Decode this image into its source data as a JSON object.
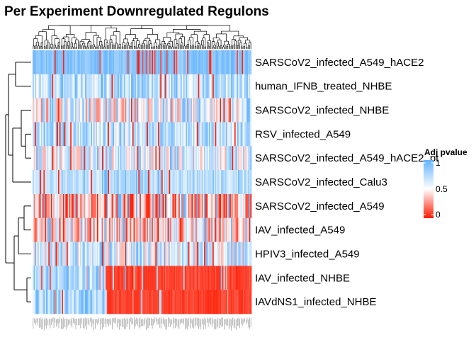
{
  "chart_data": {
    "type": "heatmap",
    "title": "Per Experiment Downregulated Regulons",
    "rows": [
      "SARSCoV2_infected_A549_hACE2",
      "human_IFNB_treated_NHBE",
      "SARSCoV2_infected_NHBE",
      "RSV_infected_A549",
      "SARSCoV2_infected_A549_hACE2_pt",
      "SARSCoV2_infected_Calu3",
      "SARSCoV2_infected_A549",
      "IAV_infected_A549",
      "HPIV3_infected_A549",
      "IAV_infected_NHBE",
      "IAVdNS1_infected_NHBE"
    ],
    "legend": {
      "title": "Adj pvalue",
      "ticks": [
        1,
        0.5,
        0
      ],
      "tick_labels": [
        "1",
        "0.5",
        "0"
      ],
      "color_low": "#ff1a00",
      "color_mid": "#ffffff",
      "color_high": "#63b3ff",
      "range": [
        0,
        1
      ],
      "placement": "right"
    },
    "columns_approx": 180,
    "row_profiles": [
      {
        "name": "SARSCoV2_infected_A549_hACE2",
        "mean": 0.88,
        "spread": 0.1
      },
      {
        "name": "human_IFNB_treated_NHBE",
        "mean": 0.72,
        "spread": 0.25
      },
      {
        "name": "SARSCoV2_infected_NHBE",
        "mean": 0.55,
        "spread": 0.35
      },
      {
        "name": "RSV_infected_A549",
        "mean": 0.7,
        "spread": 0.25
      },
      {
        "name": "SARSCoV2_infected_A549_hACE2_pt",
        "mean": 0.62,
        "spread": 0.3
      },
      {
        "name": "SARSCoV2_infected_Calu3",
        "mean": 0.72,
        "spread": 0.15
      },
      {
        "name": "SARSCoV2_infected_A549",
        "mean": 0.35,
        "spread": 0.35
      },
      {
        "name": "IAV_infected_A549",
        "mean": 0.45,
        "spread": 0.35
      },
      {
        "name": "HPIV3_infected_A549",
        "mean": 0.62,
        "spread": 0.3
      },
      {
        "name": "IAV_infected_NHBE",
        "mean": 0.2,
        "spread": 0.3
      },
      {
        "name": "IAVdNS1_infected_NHBE",
        "mean": 0.2,
        "spread": 0.3
      }
    ]
  }
}
